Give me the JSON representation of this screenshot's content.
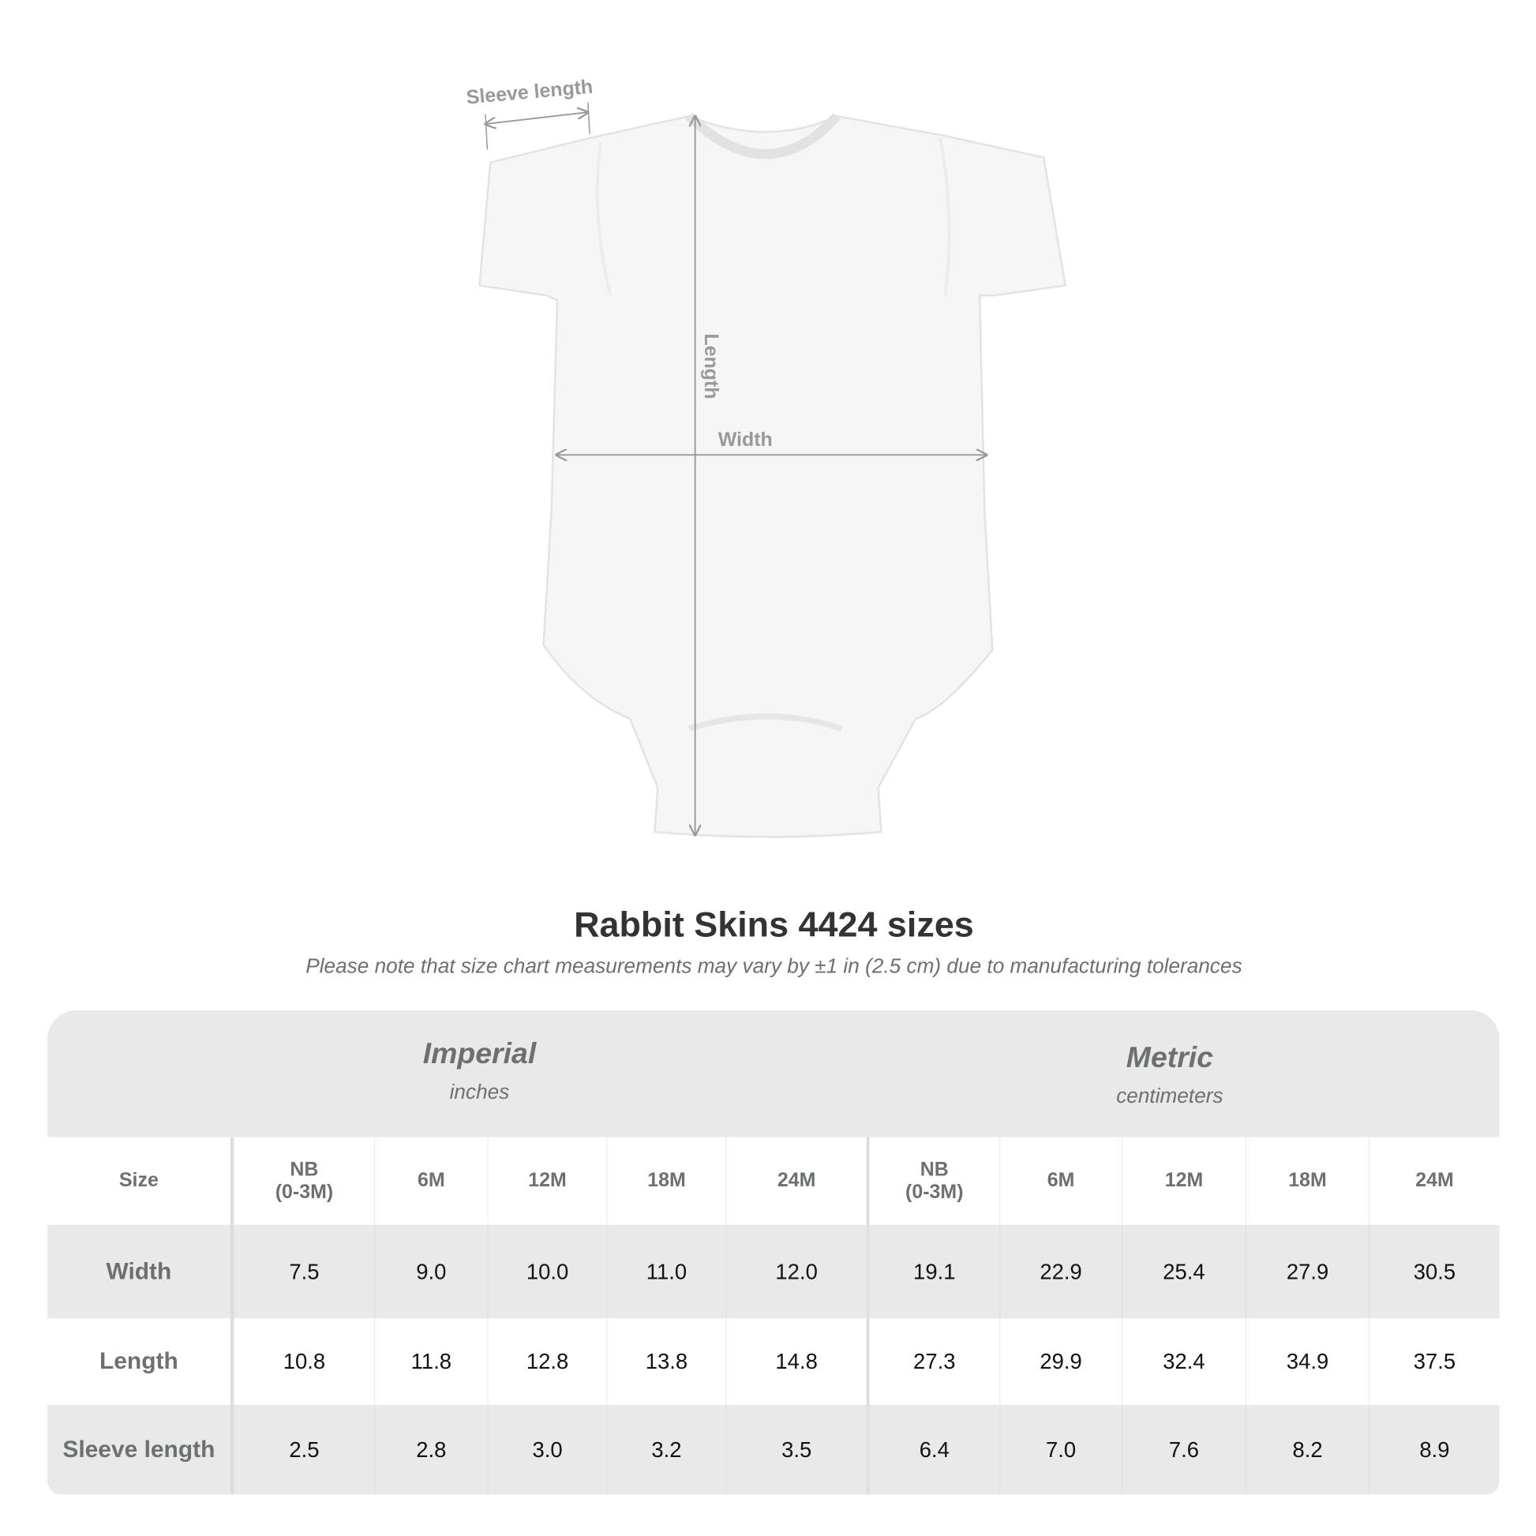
{
  "diagram": {
    "sleeve_label": "Sleeve length",
    "length_label": "Length",
    "width_label": "Width"
  },
  "title": "Rabbit Skins 4424 sizes",
  "subtitle": "Please note that size chart measurements may vary by ±1 in (2.5 cm) due to manufacturing tolerances",
  "table": {
    "imperial": {
      "name": "Imperial",
      "unit": "inches"
    },
    "metric": {
      "name": "Metric",
      "unit": "centimeters"
    },
    "header": [
      "Size",
      "NB\n(0-3M)",
      "6M",
      "12M",
      "18M",
      "24M",
      "NB\n(0-3M)",
      "6M",
      "12M",
      "18M",
      "24M"
    ],
    "rows": [
      [
        "Width",
        "7.5",
        "9.0",
        "10.0",
        "11.0",
        "12.0",
        "19.1",
        "22.9",
        "25.4",
        "27.9",
        "30.5"
      ],
      [
        "Length",
        "10.8",
        "11.8",
        "12.8",
        "13.8",
        "14.8",
        "27.3",
        "29.9",
        "32.4",
        "34.9",
        "37.5"
      ],
      [
        "Sleeve length",
        "2.5",
        "2.8",
        "3.0",
        "3.2",
        "3.5",
        "6.4",
        "7.0",
        "7.6",
        "8.2",
        "8.9"
      ]
    ]
  },
  "colors": {
    "header_band": "#e9e9e9",
    "label_text": "#6b7070",
    "title_text": "#333333"
  }
}
